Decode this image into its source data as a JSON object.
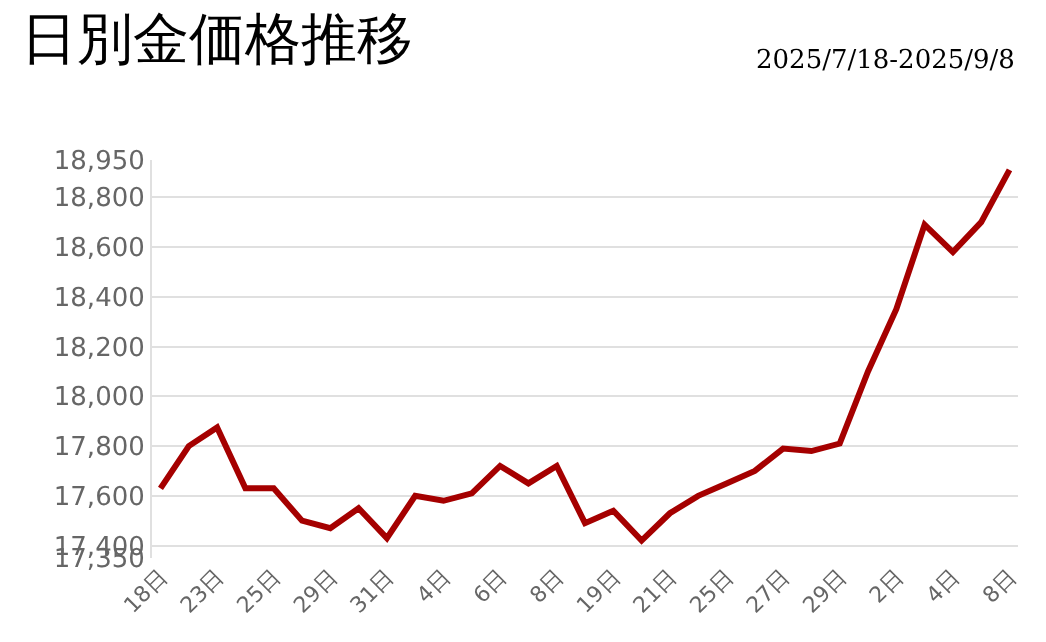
{
  "chart_data": {
    "type": "line",
    "title": "日別金価格推移",
    "subtitle": "2025/7/18-2025/9/8",
    "categories": [
      "18日",
      null,
      "23日",
      null,
      "25日",
      null,
      "29日",
      null,
      "31日",
      null,
      "4日",
      null,
      "6日",
      null,
      "8日",
      null,
      "19日",
      null,
      "21日",
      null,
      "25日",
      null,
      "27日",
      null,
      "29日",
      null,
      "2日",
      null,
      "4日",
      null,
      "8日"
    ],
    "series": [
      {
        "color": "#a50000",
        "values": [
          17630,
          17800,
          17875,
          17630,
          17630,
          17500,
          17470,
          17550,
          17430,
          17600,
          17580,
          17610,
          17720,
          17650,
          17720,
          17490,
          17540,
          17420,
          17530,
          17600,
          17650,
          17700,
          17790,
          17780,
          17810,
          18100,
          18350,
          18690,
          18580,
          18700,
          18910
        ]
      }
    ],
    "ylim": [
      17350,
      18950
    ],
    "yticks": [
      {
        "value": 17350,
        "label": "17,350"
      },
      {
        "value": 17400,
        "label": "17,400"
      },
      {
        "value": 17600,
        "label": "17,600"
      },
      {
        "value": 17800,
        "label": "17,800"
      },
      {
        "value": 18000,
        "label": "18,000"
      },
      {
        "value": 18200,
        "label": "18,200"
      },
      {
        "value": 18400,
        "label": "18,400"
      },
      {
        "value": 18600,
        "label": "18,600"
      },
      {
        "value": 18800,
        "label": "18,800"
      },
      {
        "value": 18950,
        "label": "18,950"
      }
    ],
    "grid": "y",
    "legend": false,
    "marker": "none",
    "line_style": "solid"
  }
}
